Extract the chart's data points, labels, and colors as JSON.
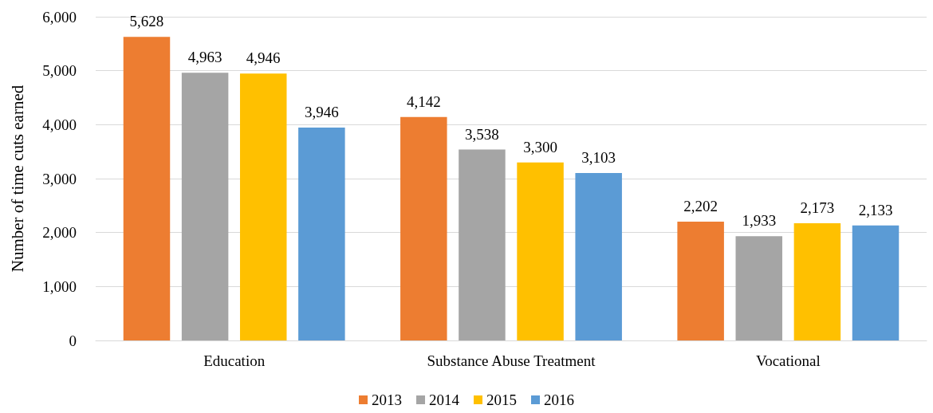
{
  "chart_data": {
    "type": "bar",
    "ylabel": "Number of time cuts earned",
    "categories": [
      "Education",
      "Substance Abuse Treatment",
      "Vocational"
    ],
    "series": [
      {
        "name": "2013",
        "color": "#ed7d31",
        "values": [
          5628,
          4142,
          2202
        ],
        "value_labels": [
          "5,628",
          "4,142",
          "2,202"
        ]
      },
      {
        "name": "2014",
        "color": "#a5a5a5",
        "values": [
          4963,
          3538,
          1933
        ],
        "value_labels": [
          "4,963",
          "3,538",
          "1,933"
        ]
      },
      {
        "name": "2015",
        "color": "#ffc000",
        "values": [
          4946,
          3300,
          2173
        ],
        "value_labels": [
          "4,946",
          "3,300",
          "2,173"
        ]
      },
      {
        "name": "2016",
        "color": "#5b9bd5",
        "values": [
          3946,
          3103,
          2133
        ],
        "value_labels": [
          "3,946",
          "3,103",
          "2,133"
        ]
      }
    ],
    "ylim": [
      0,
      6000
    ],
    "yticks": [
      0,
      {
        "value": 1000,
        "label": "1,000"
      },
      {
        "value": 2000,
        "label": "2,000"
      },
      {
        "value": 3000,
        "label": "3,000"
      },
      {
        "value": 4000,
        "label": "4,000"
      },
      {
        "value": 5000,
        "label": "5,000"
      },
      {
        "value": 6000,
        "label": "6,000"
      }
    ],
    "grid": "y",
    "legend": "bottom"
  }
}
